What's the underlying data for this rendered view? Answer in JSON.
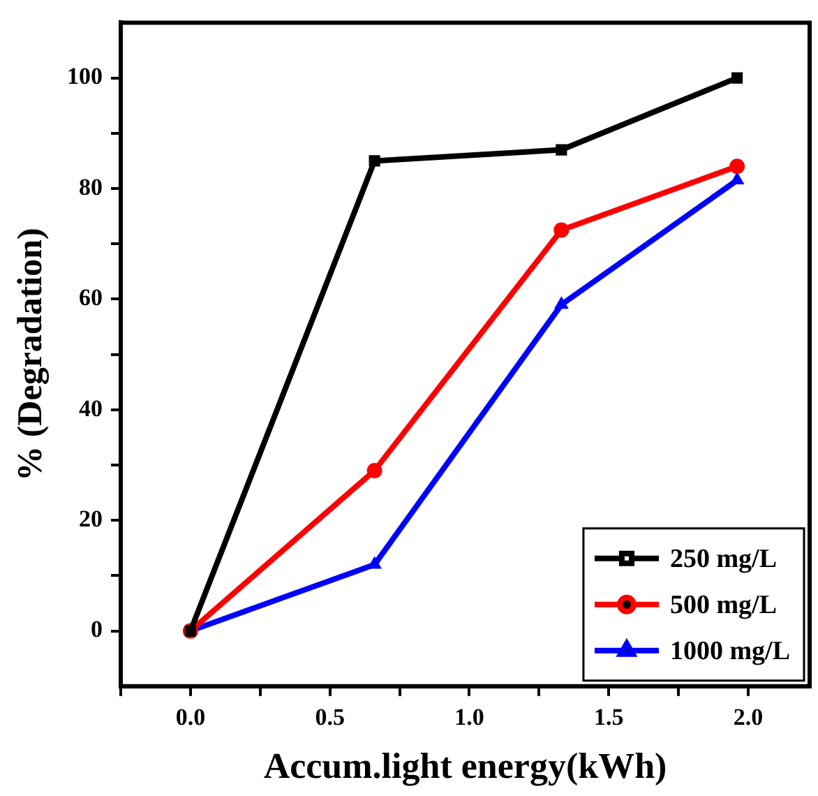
{
  "chart_data": {
    "type": "line",
    "xlabel": "Accum.light energy(kWh)",
    "ylabel": "% (Degradation)",
    "x": [
      0,
      0.66,
      1.33,
      1.96
    ],
    "series": [
      {
        "name": "250 mg/L",
        "color": "#000000",
        "marker": "square",
        "values": [
          0,
          85,
          87,
          100
        ]
      },
      {
        "name": "500 mg/L",
        "color": "#ff0000",
        "marker": "circle",
        "values": [
          0,
          29,
          72.5,
          84
        ]
      },
      {
        "name": "1000 mg/L",
        "color": "#0000ff",
        "marker": "triangle",
        "values": [
          0,
          12,
          59,
          81.5
        ]
      }
    ],
    "xlim": [
      -0.25,
      2.22
    ],
    "xticks": [
      {
        "value": -0.25,
        "label": null
      },
      {
        "value": 0,
        "label": "0.0"
      },
      {
        "value": 0.25,
        "label": null
      },
      0.5,
      {
        "value": 0.75,
        "label": null
      },
      {
        "value": 1,
        "label": "1.0"
      },
      {
        "value": 1.25,
        "label": null
      },
      1.5,
      {
        "value": 1.75,
        "label": null
      },
      {
        "value": 2,
        "label": "2.0"
      }
    ],
    "ylim": [
      -10,
      110
    ],
    "yticks": [
      0,
      {
        "value": 10,
        "label": null
      },
      20,
      {
        "value": 30,
        "label": null
      },
      40,
      {
        "value": 50,
        "label": null
      },
      60,
      {
        "value": 70,
        "label": null
      },
      80,
      {
        "value": 90,
        "label": null
      },
      100
    ],
    "grid": false,
    "legend": "bottom right",
    "line_style": "solid"
  }
}
